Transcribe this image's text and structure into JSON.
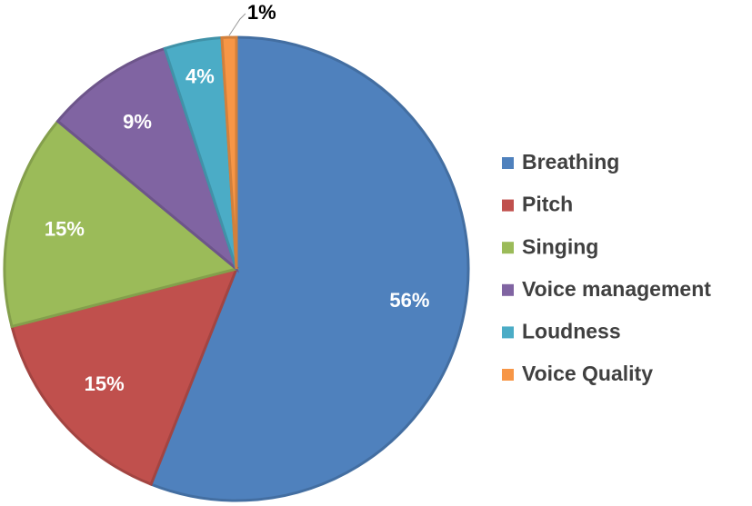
{
  "chart_data": {
    "type": "pie",
    "categories": [
      "Breathing",
      "Pitch",
      "Singing",
      "Voice management",
      "Loudness",
      "Voice Quality"
    ],
    "values": [
      56,
      15,
      15,
      9,
      4,
      1
    ],
    "value_labels": [
      "56%",
      "15%",
      "15%",
      "9%",
      "4%",
      "1%"
    ],
    "colors": [
      "#4f81bd",
      "#c0504d",
      "#9bbb59",
      "#8064a2",
      "#4bacc6",
      "#f79646"
    ],
    "legend": "right"
  }
}
